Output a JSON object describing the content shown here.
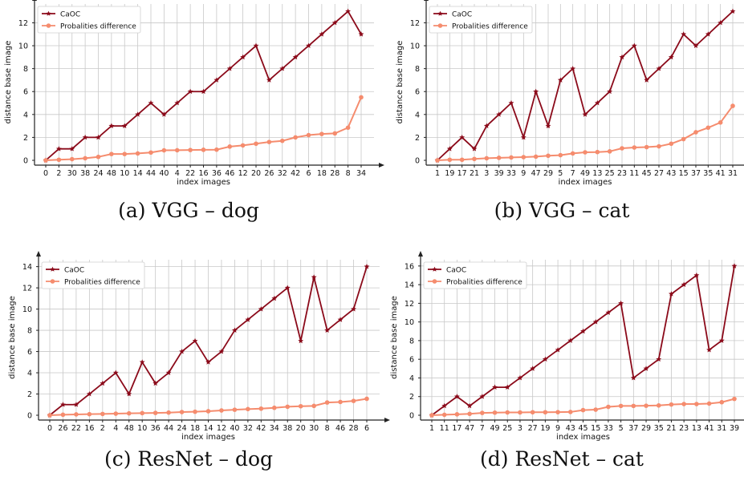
{
  "colors": {
    "caoc": "#8b0a1a",
    "prob": "#f58c6e",
    "grid": "#c8c8c8",
    "axis": "#222222"
  },
  "chart_data": [
    {
      "type": "line",
      "caption": "(a) VGG – dog",
      "xlabel": "index images",
      "ylabel": "distance base image",
      "categories": [
        "0",
        "2",
        "30",
        "38",
        "24",
        "48",
        "10",
        "14",
        "44",
        "40",
        "4",
        "22",
        "16",
        "36",
        "46",
        "12",
        "20",
        "26",
        "32",
        "42",
        "6",
        "18",
        "28",
        "8",
        "34"
      ],
      "ylim": [
        0,
        13.5
      ],
      "yticks": [
        0,
        2,
        4,
        6,
        8,
        10,
        12
      ],
      "grid": true,
      "legend": "top-left",
      "series": [
        {
          "name": "CaOC",
          "values": [
            0,
            1,
            1,
            2,
            2,
            3,
            3,
            4,
            5,
            4,
            5,
            6,
            6,
            7,
            8,
            9,
            10,
            7,
            8,
            9,
            10,
            11,
            12,
            13,
            11
          ]
        },
        {
          "name": "Probalities difference",
          "values": [
            0,
            0.05,
            0.1,
            0.18,
            0.3,
            0.55,
            0.55,
            0.6,
            0.68,
            0.87,
            0.88,
            0.9,
            0.92,
            0.93,
            1.2,
            1.3,
            1.45,
            1.6,
            1.7,
            2.0,
            2.2,
            2.3,
            2.35,
            2.85,
            5.5
          ]
        }
      ]
    },
    {
      "type": "line",
      "caption": "(b) VGG – cat",
      "xlabel": "index images",
      "ylabel": "distance base image",
      "categories": [
        "1",
        "19",
        "17",
        "21",
        "3",
        "39",
        "33",
        "9",
        "47",
        "29",
        "5",
        "7",
        "49",
        "13",
        "25",
        "23",
        "11",
        "45",
        "27",
        "43",
        "15",
        "37",
        "35",
        "41",
        "31"
      ],
      "ylim": [
        0,
        13.5
      ],
      "yticks": [
        0,
        2,
        4,
        6,
        8,
        10,
        12
      ],
      "grid": true,
      "legend": "top-left",
      "series": [
        {
          "name": "CaOC",
          "values": [
            0,
            1,
            2,
            1,
            3,
            4,
            5,
            2,
            6,
            3,
            7,
            8,
            4,
            5,
            6,
            9,
            10,
            7,
            8,
            9,
            11,
            10,
            11,
            12,
            13
          ]
        },
        {
          "name": "Probalities difference",
          "values": [
            0,
            0.05,
            0.05,
            0.12,
            0.18,
            0.22,
            0.25,
            0.28,
            0.32,
            0.4,
            0.45,
            0.6,
            0.7,
            0.72,
            0.78,
            1.05,
            1.12,
            1.15,
            1.22,
            1.45,
            1.85,
            2.45,
            2.85,
            3.3,
            4.75
          ]
        }
      ]
    },
    {
      "type": "line",
      "caption": "(c) ResNet – dog",
      "xlabel": "index images",
      "ylabel": "distance base image",
      "categories": [
        "0",
        "26",
        "22",
        "16",
        "2",
        "4",
        "48",
        "10",
        "36",
        "44",
        "24",
        "18",
        "14",
        "12",
        "40",
        "32",
        "42",
        "34",
        "38",
        "20",
        "30",
        "8",
        "46",
        "28",
        "6"
      ],
      "ylim": [
        0,
        14.5
      ],
      "yticks": [
        0,
        2,
        4,
        6,
        8,
        10,
        12,
        14
      ],
      "grid": true,
      "legend": "top-left",
      "series": [
        {
          "name": "CaOC",
          "values": [
            0,
            1,
            1,
            2,
            3,
            4,
            2,
            5,
            3,
            4,
            6,
            7,
            5,
            6,
            8,
            9,
            10,
            11,
            12,
            7,
            13,
            8,
            9,
            10,
            14
          ]
        },
        {
          "name": "Probalities difference",
          "values": [
            0,
            0.05,
            0.08,
            0.1,
            0.12,
            0.15,
            0.18,
            0.2,
            0.22,
            0.25,
            0.3,
            0.33,
            0.38,
            0.45,
            0.52,
            0.58,
            0.62,
            0.7,
            0.8,
            0.85,
            0.88,
            1.2,
            1.25,
            1.35,
            1.55
          ]
        }
      ]
    },
    {
      "type": "line",
      "caption": "(d) ResNet – cat",
      "xlabel": "index images",
      "ylabel": "distance base image",
      "categories": [
        "1",
        "11",
        "17",
        "47",
        "7",
        "49",
        "25",
        "3",
        "27",
        "19",
        "9",
        "43",
        "45",
        "15",
        "33",
        "5",
        "37",
        "29",
        "35",
        "21",
        "23",
        "13",
        "41",
        "31",
        "39"
      ],
      "ylim": [
        0,
        16.5
      ],
      "yticks": [
        0,
        2,
        4,
        6,
        8,
        10,
        12,
        14,
        16
      ],
      "grid": true,
      "legend": "top-left",
      "series": [
        {
          "name": "CaOC",
          "values": [
            0,
            1,
            2,
            1,
            2,
            3,
            3,
            4,
            5,
            6,
            7,
            8,
            9,
            10,
            11,
            12,
            4,
            5,
            6,
            13,
            14,
            15,
            7,
            8,
            16
          ]
        },
        {
          "name": "Probalities difference",
          "values": [
            0,
            0.05,
            0.1,
            0.15,
            0.25,
            0.28,
            0.3,
            0.3,
            0.32,
            0.32,
            0.33,
            0.35,
            0.55,
            0.6,
            0.9,
            1.0,
            1.0,
            1.02,
            1.05,
            1.15,
            1.2,
            1.2,
            1.25,
            1.4,
            1.75
          ]
        }
      ]
    }
  ]
}
